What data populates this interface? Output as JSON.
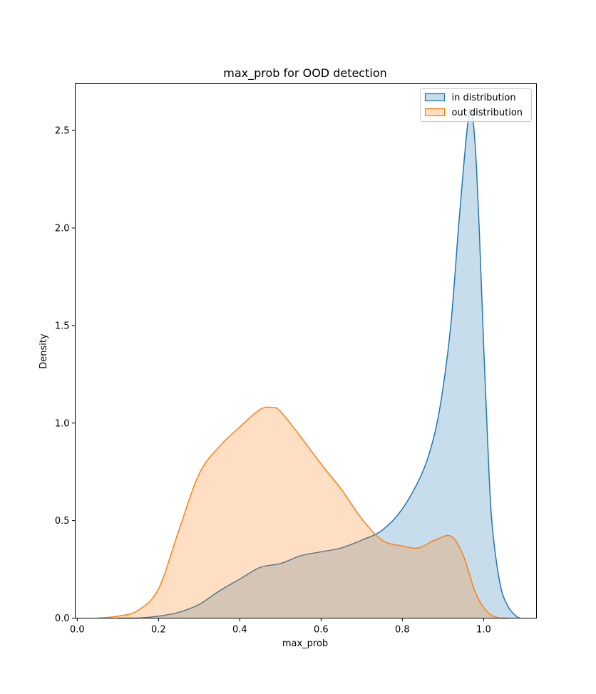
{
  "chart_data": {
    "type": "area",
    "title": "max_prob for OOD detection",
    "xlabel": "max_prob",
    "ylabel": "Density",
    "xlim": [
      -0.005,
      1.13
    ],
    "ylim": [
      0,
      2.74
    ],
    "xticks": [
      0.0,
      0.2,
      0.4,
      0.6,
      0.8,
      1.0
    ],
    "xtick_labels": [
      "0.0",
      "0.2",
      "0.4",
      "0.6",
      "0.8",
      "1.0"
    ],
    "yticks": [
      0.0,
      0.5,
      1.0,
      1.5,
      2.0,
      2.5
    ],
    "ytick_labels": [
      "0.0",
      "0.5",
      "1.0",
      "1.5",
      "2.0",
      "2.5"
    ],
    "grid": false,
    "legend_position": "top-right",
    "series": [
      {
        "name": "in distribution",
        "color": "#1f77b4",
        "fill": "#c6dbed",
        "x": [
          0.1,
          0.15,
          0.2,
          0.25,
          0.3,
          0.35,
          0.4,
          0.45,
          0.5,
          0.55,
          0.6,
          0.65,
          0.7,
          0.75,
          0.8,
          0.85,
          0.88,
          0.9,
          0.92,
          0.94,
          0.96,
          0.97,
          0.98,
          0.99,
          1.0,
          1.01,
          1.02,
          1.04,
          1.06,
          1.08,
          1.09
        ],
        "y": [
          0.0,
          0.0,
          0.01,
          0.03,
          0.07,
          0.14,
          0.2,
          0.26,
          0.28,
          0.32,
          0.34,
          0.36,
          0.4,
          0.45,
          0.56,
          0.75,
          0.95,
          1.18,
          1.52,
          2.05,
          2.52,
          2.6,
          2.4,
          1.95,
          1.4,
          0.9,
          0.5,
          0.18,
          0.06,
          0.01,
          0.0
        ]
      },
      {
        "name": "out distribution",
        "color": "#ff7f0e",
        "fill": "#fdd9b9",
        "x": [
          0.05,
          0.1,
          0.15,
          0.2,
          0.25,
          0.3,
          0.35,
          0.4,
          0.45,
          0.48,
          0.5,
          0.55,
          0.6,
          0.65,
          0.7,
          0.75,
          0.8,
          0.84,
          0.88,
          0.92,
          0.95,
          0.98,
          1.01,
          1.04,
          1.06
        ],
        "y": [
          0.0,
          0.01,
          0.04,
          0.15,
          0.45,
          0.74,
          0.88,
          0.98,
          1.07,
          1.08,
          1.06,
          0.93,
          0.79,
          0.66,
          0.51,
          0.4,
          0.37,
          0.36,
          0.4,
          0.42,
          0.32,
          0.13,
          0.03,
          0.0,
          0.0
        ]
      }
    ]
  }
}
